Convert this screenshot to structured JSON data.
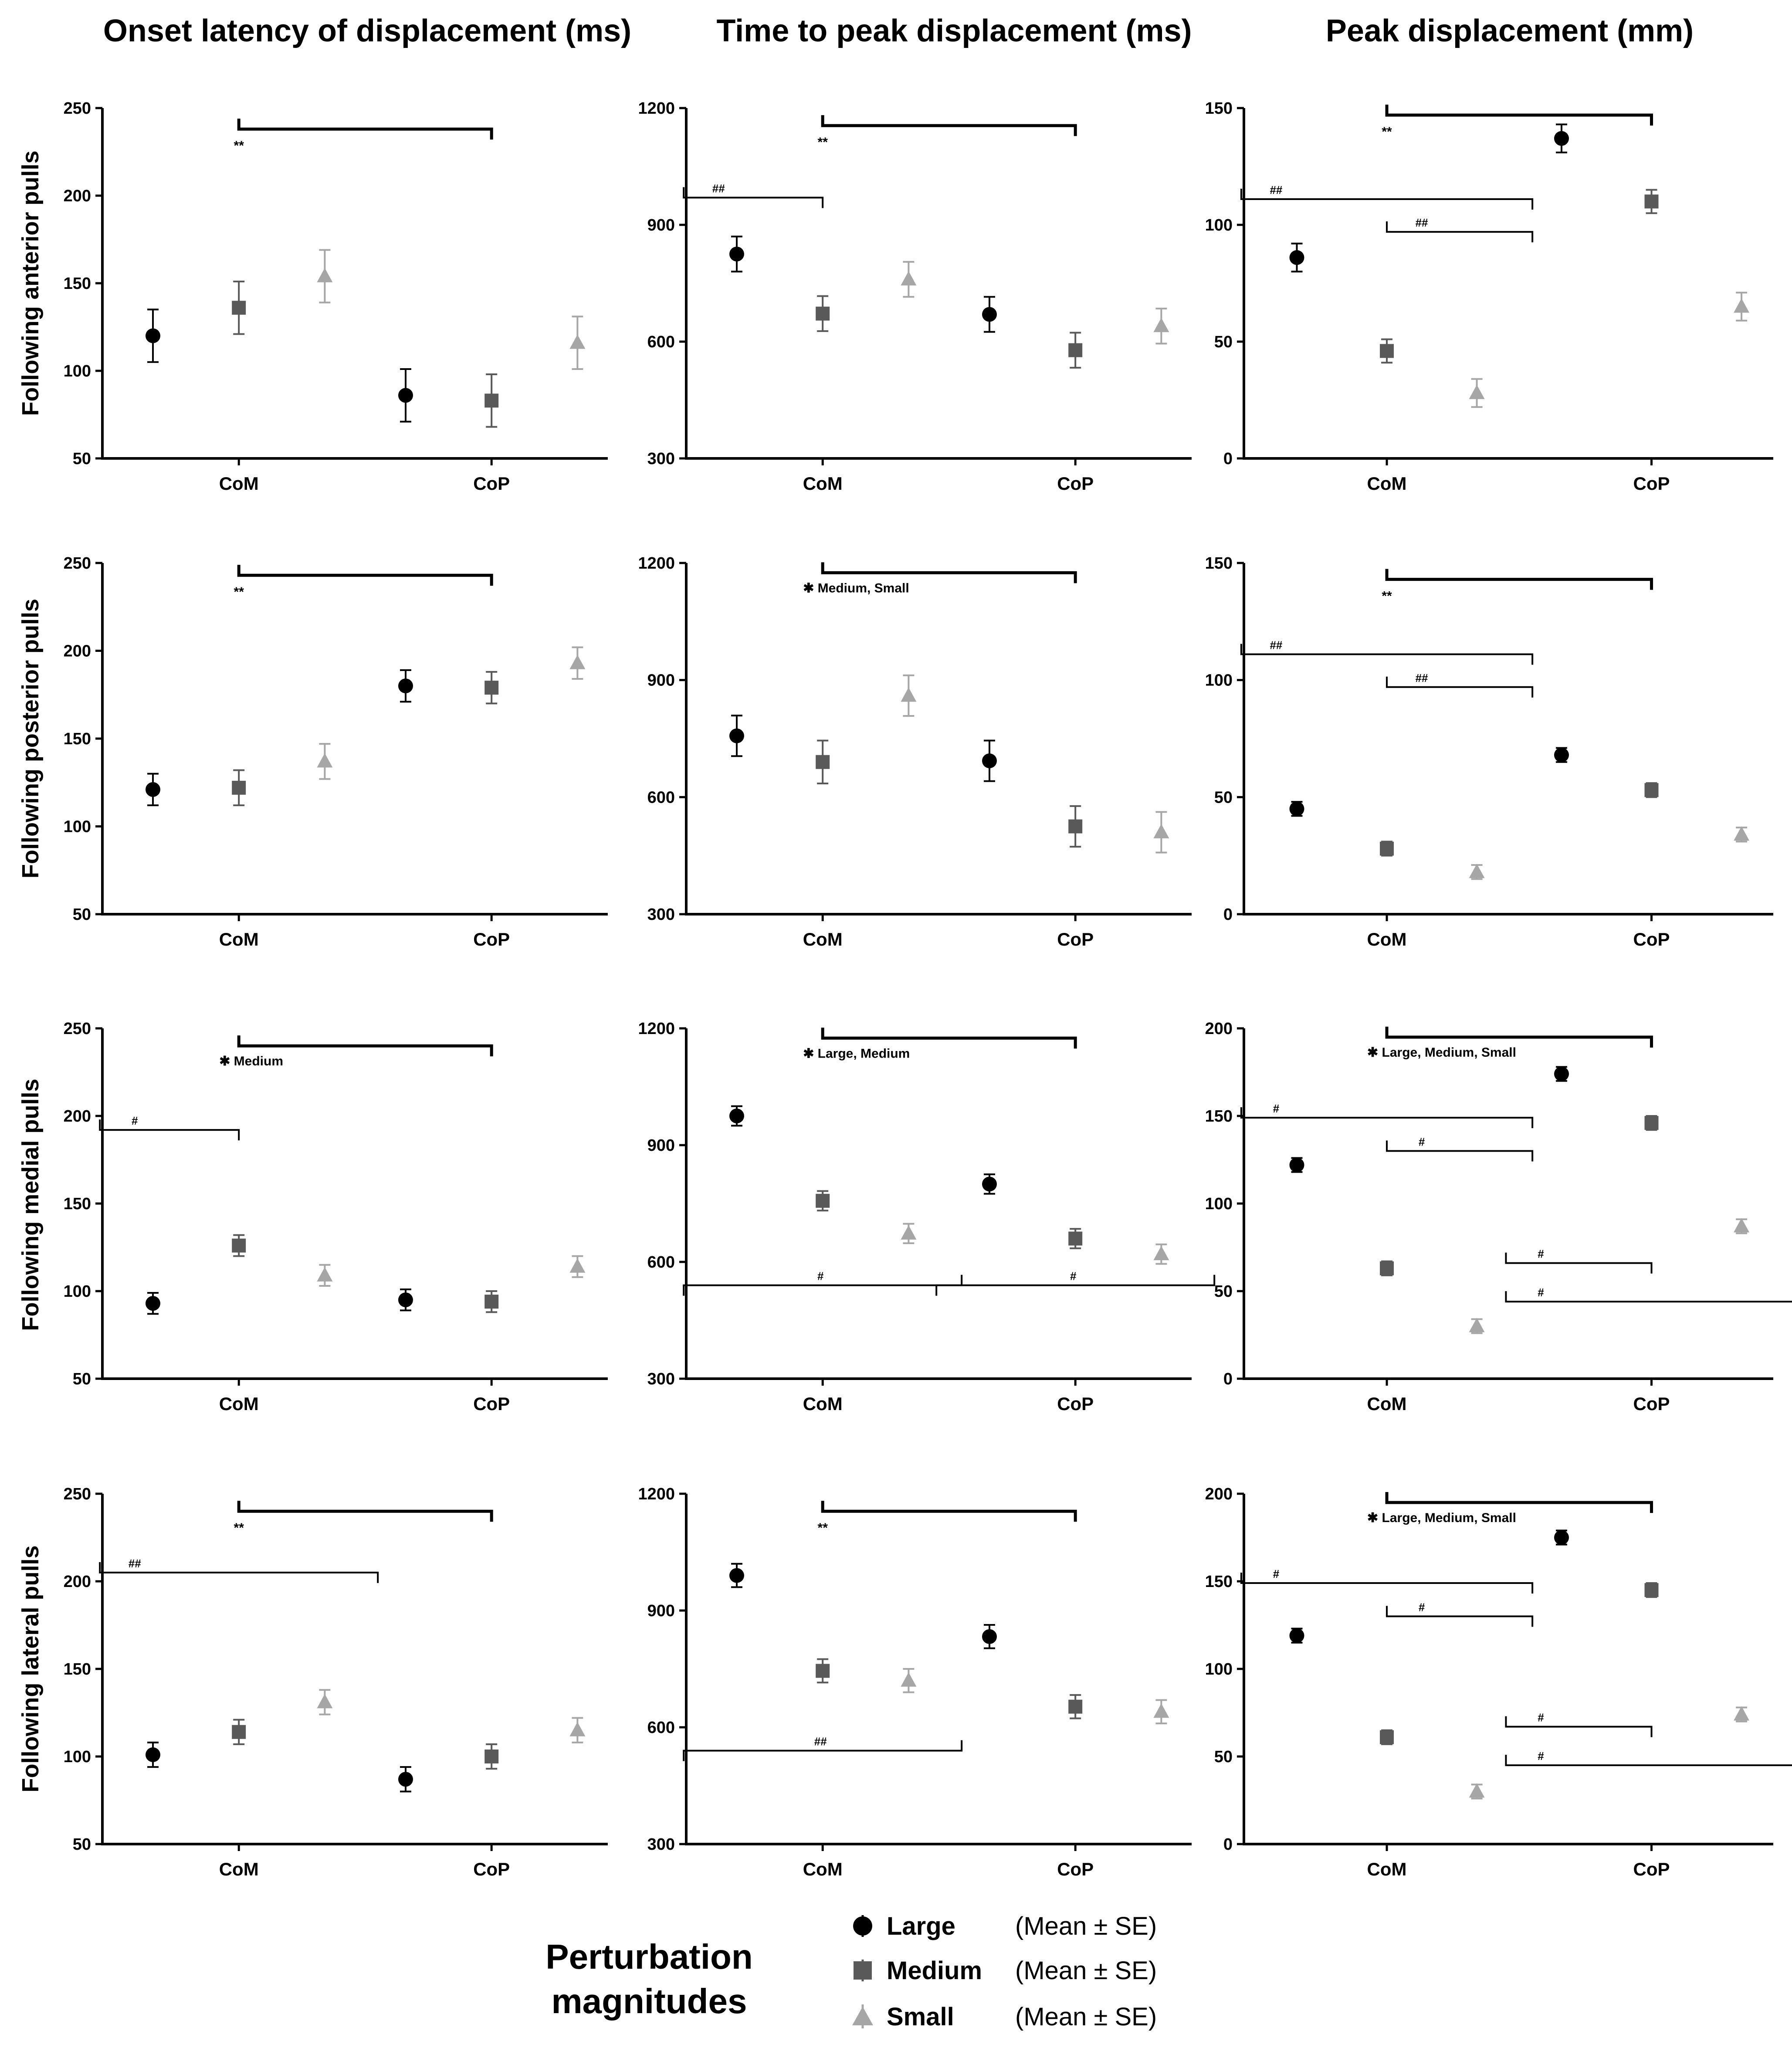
{
  "chart_data": {
    "column_titles": [
      "Onset latency of displacement (ms)",
      "Time to peak displacement (ms)",
      "Peak displacement (mm)"
    ],
    "row_labels": [
      "Following anterior pulls",
      "Following posterior pulls",
      "Following medial pulls",
      "Following lateral pulls"
    ],
    "categories": [
      "CoM",
      "CoP"
    ],
    "series_names": [
      "Large",
      "Medium",
      "Small"
    ],
    "series_colors": [
      "#000000",
      "#595959",
      "#a6a6a6"
    ],
    "legend": {
      "title_line1": "Perturbation",
      "title_line2": "magnitudes",
      "items": [
        {
          "name": "Large",
          "stat": "(Mean ± SE)"
        },
        {
          "name": "Medium",
          "stat": "(Mean ± SE)"
        },
        {
          "name": "Small",
          "stat": "(Mean ± SE)"
        }
      ]
    },
    "panels": [
      {
        "type": "scatter",
        "row": 0,
        "col": 0,
        "ylim": [
          50,
          250
        ],
        "yticks": [
          50,
          100,
          150,
          200,
          250
        ],
        "series": [
          {
            "name": "Large",
            "mean": [
              120,
              86
            ],
            "se": [
              15,
              15
            ]
          },
          {
            "name": "Medium",
            "mean": [
              136,
              83
            ],
            "se": [
              15,
              15
            ]
          },
          {
            "name": "Small",
            "mean": [
              154,
              116
            ],
            "se": [
              15,
              15
            ]
          }
        ],
        "brackets": [
          {
            "x1": 0,
            "x2": 1,
            "y": 238,
            "label": "**"
          }
        ]
      },
      {
        "type": "scatter",
        "row": 0,
        "col": 1,
        "ylim": [
          300,
          1200
        ],
        "yticks": [
          300,
          600,
          900,
          1200
        ],
        "series": [
          {
            "name": "Large",
            "mean": [
              825,
              670
            ],
            "se": [
              45,
              45
            ]
          },
          {
            "name": "Medium",
            "mean": [
              672,
              578
            ],
            "se": [
              45,
              45
            ]
          },
          {
            "name": "Small",
            "mean": [
              760,
              640
            ],
            "se": [
              45,
              45
            ]
          }
        ],
        "brackets": [
          {
            "x1": 0,
            "x2": 1,
            "y": 1155,
            "label": "**"
          },
          {
            "x1": -0.55,
            "x2": 0,
            "y": 970,
            "label": "##"
          }
        ]
      },
      {
        "type": "scatter",
        "row": 0,
        "col": 2,
        "ylim": [
          0,
          150
        ],
        "yticks": [
          0,
          50,
          100,
          150
        ],
        "series": [
          {
            "name": "Large",
            "mean": [
              86,
              137
            ],
            "se": [
              6,
              6
            ]
          },
          {
            "name": "Medium",
            "mean": [
              46,
              110
            ],
            "se": [
              5,
              5
            ]
          },
          {
            "name": "Small",
            "mean": [
              28,
              65
            ],
            "se": [
              6,
              6
            ]
          }
        ],
        "brackets": [
          {
            "x1": 0,
            "x2": 1,
            "y": 147,
            "label": "**"
          },
          {
            "x1": -0.55,
            "x2": 0.55,
            "y": 111,
            "label": "##"
          },
          {
            "x1": 0,
            "x2": 0.55,
            "y": 97,
            "label": "##"
          }
        ]
      },
      {
        "type": "scatter",
        "row": 1,
        "col": 0,
        "ylim": [
          50,
          250
        ],
        "yticks": [
          50,
          100,
          150,
          200,
          250
        ],
        "series": [
          {
            "name": "Large",
            "mean": [
              121,
              180
            ],
            "se": [
              9,
              9
            ]
          },
          {
            "name": "Medium",
            "mean": [
              122,
              179
            ],
            "se": [
              10,
              9
            ]
          },
          {
            "name": "Small",
            "mean": [
              137,
              193
            ],
            "se": [
              10,
              9
            ]
          }
        ],
        "brackets": [
          {
            "x1": 0,
            "x2": 1,
            "y": 243,
            "label": "**"
          }
        ]
      },
      {
        "type": "scatter",
        "row": 1,
        "col": 1,
        "ylim": [
          300,
          1200
        ],
        "yticks": [
          300,
          600,
          900,
          1200
        ],
        "series": [
          {
            "name": "Large",
            "mean": [
              757,
              693
            ],
            "se": [
              52,
              52
            ]
          },
          {
            "name": "Medium",
            "mean": [
              690,
              525
            ],
            "se": [
              55,
              52
            ]
          },
          {
            "name": "Small",
            "mean": [
              860,
              510
            ],
            "se": [
              52,
              52
            ]
          }
        ],
        "brackets": [
          {
            "x1": 0,
            "x2": 1,
            "y": 1175,
            "label": "✱ Medium, Small"
          }
        ]
      },
      {
        "type": "scatter",
        "row": 1,
        "col": 2,
        "ylim": [
          0,
          150
        ],
        "yticks": [
          0,
          50,
          100,
          150
        ],
        "series": [
          {
            "name": "Large",
            "mean": [
              45,
              68
            ],
            "se": [
              3,
              3
            ]
          },
          {
            "name": "Medium",
            "mean": [
              28,
              53
            ],
            "se": [
              3,
              3
            ]
          },
          {
            "name": "Small",
            "mean": [
              18,
              34
            ],
            "se": [
              3,
              3
            ]
          }
        ],
        "brackets": [
          {
            "x1": 0,
            "x2": 1,
            "y": 143,
            "label": "**"
          },
          {
            "x1": -0.55,
            "x2": 0.55,
            "y": 111,
            "label": "##"
          },
          {
            "x1": 0,
            "x2": 0.55,
            "y": 97,
            "label": "##"
          }
        ]
      },
      {
        "type": "scatter",
        "row": 2,
        "col": 0,
        "ylim": [
          50,
          250
        ],
        "yticks": [
          50,
          100,
          150,
          200,
          250
        ],
        "series": [
          {
            "name": "Large",
            "mean": [
              93,
              95
            ],
            "se": [
              6,
              6
            ]
          },
          {
            "name": "Medium",
            "mean": [
              126,
              94
            ],
            "se": [
              6,
              6
            ]
          },
          {
            "name": "Small",
            "mean": [
              109,
              114
            ],
            "se": [
              6,
              6
            ]
          }
        ],
        "brackets": [
          {
            "x1": 0,
            "x2": 1,
            "y": 240,
            "label": "✱ Medium"
          },
          {
            "x1": -0.55,
            "x2": 0,
            "y": 192,
            "label": "#"
          }
        ]
      },
      {
        "type": "scatter",
        "row": 2,
        "col": 1,
        "ylim": [
          300,
          1200
        ],
        "yticks": [
          300,
          600,
          900,
          1200
        ],
        "series": [
          {
            "name": "Large",
            "mean": [
              975,
              800
            ],
            "se": [
              25,
              25
            ]
          },
          {
            "name": "Medium",
            "mean": [
              757,
              660
            ],
            "se": [
              25,
              25
            ]
          },
          {
            "name": "Small",
            "mean": [
              673,
              620
            ],
            "se": [
              25,
              25
            ]
          }
        ],
        "brackets": [
          {
            "x1": 0,
            "x2": 1,
            "y": 1175,
            "label": "✱ Large, Medium"
          },
          {
            "x1": -0.55,
            "x2": 0.55,
            "y": 540,
            "label": "#",
            "dir": "up"
          },
          {
            "x1": 0.45,
            "x2": 1.55,
            "y": 540,
            "label": "#",
            "dir": "up"
          }
        ]
      },
      {
        "type": "scatter",
        "row": 2,
        "col": 2,
        "ylim": [
          0,
          200
        ],
        "yticks": [
          0,
          50,
          100,
          150,
          200
        ],
        "series": [
          {
            "name": "Large",
            "mean": [
              122,
              174
            ],
            "se": [
              4,
              4
            ]
          },
          {
            "name": "Medium",
            "mean": [
              63,
              146
            ],
            "se": [
              4,
              4
            ]
          },
          {
            "name": "Small",
            "mean": [
              30,
              87
            ],
            "se": [
              4,
              4
            ]
          }
        ],
        "brackets": [
          {
            "x1": 0,
            "x2": 1,
            "y": 195,
            "label": "✱ Large, Medium, Small"
          },
          {
            "x1": -0.55,
            "x2": 0.55,
            "y": 149,
            "label": "#"
          },
          {
            "x1": 0,
            "x2": 0.55,
            "y": 130,
            "label": "#"
          },
          {
            "x1": 0.45,
            "x2": 1,
            "y": 66,
            "label": "#"
          },
          {
            "x1": 0.45,
            "x2": 1.55,
            "y": 44,
            "label": "#"
          }
        ]
      },
      {
        "type": "scatter",
        "row": 3,
        "col": 0,
        "ylim": [
          50,
          250
        ],
        "yticks": [
          50,
          100,
          150,
          200,
          250
        ],
        "series": [
          {
            "name": "Large",
            "mean": [
              101,
              87
            ],
            "se": [
              7,
              7
            ]
          },
          {
            "name": "Medium",
            "mean": [
              114,
              100
            ],
            "se": [
              7,
              7
            ]
          },
          {
            "name": "Small",
            "mean": [
              131,
              115
            ],
            "se": [
              7,
              7
            ]
          }
        ],
        "brackets": [
          {
            "x1": 0,
            "x2": 1,
            "y": 240,
            "label": "**"
          },
          {
            "x1": -0.55,
            "x2": 0.55,
            "y": 205,
            "label": "##"
          }
        ]
      },
      {
        "type": "scatter",
        "row": 3,
        "col": 1,
        "ylim": [
          300,
          1200
        ],
        "yticks": [
          300,
          600,
          900,
          1200
        ],
        "series": [
          {
            "name": "Large",
            "mean": [
              990,
              833
            ],
            "se": [
              30,
              30
            ]
          },
          {
            "name": "Medium",
            "mean": [
              745,
              653
            ],
            "se": [
              30,
              30
            ]
          },
          {
            "name": "Small",
            "mean": [
              720,
              640
            ],
            "se": [
              30,
              30
            ]
          }
        ],
        "brackets": [
          {
            "x1": 0,
            "x2": 1,
            "y": 1155,
            "label": "**"
          },
          {
            "x1": -0.55,
            "x2": 0.55,
            "y": 540,
            "label": "##",
            "dir": "up"
          }
        ]
      },
      {
        "type": "scatter",
        "row": 3,
        "col": 2,
        "ylim": [
          0,
          200
        ],
        "yticks": [
          0,
          50,
          100,
          150,
          200
        ],
        "series": [
          {
            "name": "Large",
            "mean": [
              119,
              175
            ],
            "se": [
              4,
              4
            ]
          },
          {
            "name": "Medium",
            "mean": [
              61,
              145
            ],
            "se": [
              4,
              4
            ]
          },
          {
            "name": "Small",
            "mean": [
              30,
              74
            ],
            "se": [
              4,
              4
            ]
          }
        ],
        "brackets": [
          {
            "x1": 0,
            "x2": 1,
            "y": 195,
            "label": "✱ Large, Medium, Small"
          },
          {
            "x1": -0.55,
            "x2": 0.55,
            "y": 149,
            "label": "#"
          },
          {
            "x1": 0,
            "x2": 0.55,
            "y": 130,
            "label": "#"
          },
          {
            "x1": 0.45,
            "x2": 1,
            "y": 67,
            "label": "#"
          },
          {
            "x1": 0.45,
            "x2": 1.55,
            "y": 45,
            "label": "#"
          }
        ]
      }
    ]
  }
}
